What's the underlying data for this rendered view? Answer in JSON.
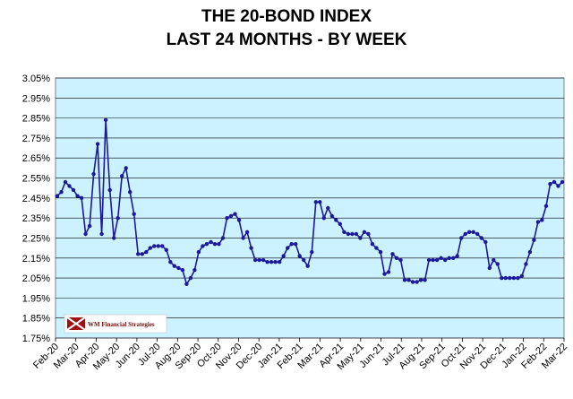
{
  "chart_data": {
    "type": "line",
    "title": "THE 20-BOND INDEX",
    "subtitle": "LAST 24 MONTHS - BY WEEK",
    "xlabel": "",
    "ylabel": "",
    "ylim": [
      0.0175,
      0.0305
    ],
    "y_ticks": [
      "1.75%",
      "1.85%",
      "1.95%",
      "2.05%",
      "2.15%",
      "2.25%",
      "2.35%",
      "2.45%",
      "2.55%",
      "2.65%",
      "2.75%",
      "2.85%",
      "2.95%",
      "3.05%"
    ],
    "x_ticks": [
      "Feb-20",
      "Mar-20",
      "Apr-20",
      "May-20",
      "Jun-20",
      "Jul-20",
      "Aug-20",
      "Sep-20",
      "Oct-20",
      "Nov-20",
      "Dec-20",
      "Jan-21",
      "Feb-21",
      "Mar-21",
      "Apr-21",
      "May-21",
      "Jun-21",
      "Jul-21",
      "Aug-21",
      "Sep-21",
      "Oct-21",
      "Nov-21",
      "Dec-21",
      "Jan-22",
      "Feb-22",
      "Mar-22"
    ],
    "grid": true,
    "legend": "none",
    "series_color": "#1a1a9a",
    "plot_background": "#ccf2ff",
    "values": [
      0.0246,
      0.0248,
      0.0253,
      0.0251,
      0.0249,
      0.0246,
      0.0245,
      0.0227,
      0.0231,
      0.0257,
      0.0272,
      0.0227,
      0.0284,
      0.0249,
      0.0225,
      0.0235,
      0.0256,
      0.026,
      0.0248,
      0.0237,
      0.0217,
      0.0217,
      0.0218,
      0.022,
      0.0221,
      0.0221,
      0.0221,
      0.0219,
      0.0213,
      0.0211,
      0.021,
      0.0209,
      0.0202,
      0.0205,
      0.0209,
      0.0218,
      0.0221,
      0.0222,
      0.0223,
      0.0222,
      0.0222,
      0.0225,
      0.0235,
      0.0236,
      0.0237,
      0.0234,
      0.0225,
      0.0228,
      0.022,
      0.0214,
      0.0214,
      0.0214,
      0.0213,
      0.0213,
      0.0213,
      0.0213,
      0.0216,
      0.022,
      0.0222,
      0.0222,
      0.0216,
      0.0214,
      0.0211,
      0.0218,
      0.0243,
      0.0243,
      0.0235,
      0.024,
      0.0236,
      0.0234,
      0.0232,
      0.0228,
      0.0227,
      0.0227,
      0.0227,
      0.0225,
      0.0228,
      0.0227,
      0.0222,
      0.022,
      0.0218,
      0.0207,
      0.0208,
      0.0217,
      0.0215,
      0.0214,
      0.0204,
      0.0204,
      0.0203,
      0.0203,
      0.0204,
      0.0204,
      0.0214,
      0.0214,
      0.0214,
      0.0215,
      0.0214,
      0.0215,
      0.0215,
      0.0216,
      0.0225,
      0.0227,
      0.0228,
      0.0228,
      0.0227,
      0.0225,
      0.0223,
      0.021,
      0.0214,
      0.0212,
      0.0205,
      0.0205,
      0.0205,
      0.0205,
      0.0205,
      0.0206,
      0.0212,
      0.0218,
      0.0224,
      0.0233,
      0.0234,
      0.0241,
      0.0252,
      0.0253,
      0.0251,
      0.0253
    ]
  },
  "logo": {
    "text": "WM Financial Strategies",
    "icon": "wm-flag-icon"
  }
}
